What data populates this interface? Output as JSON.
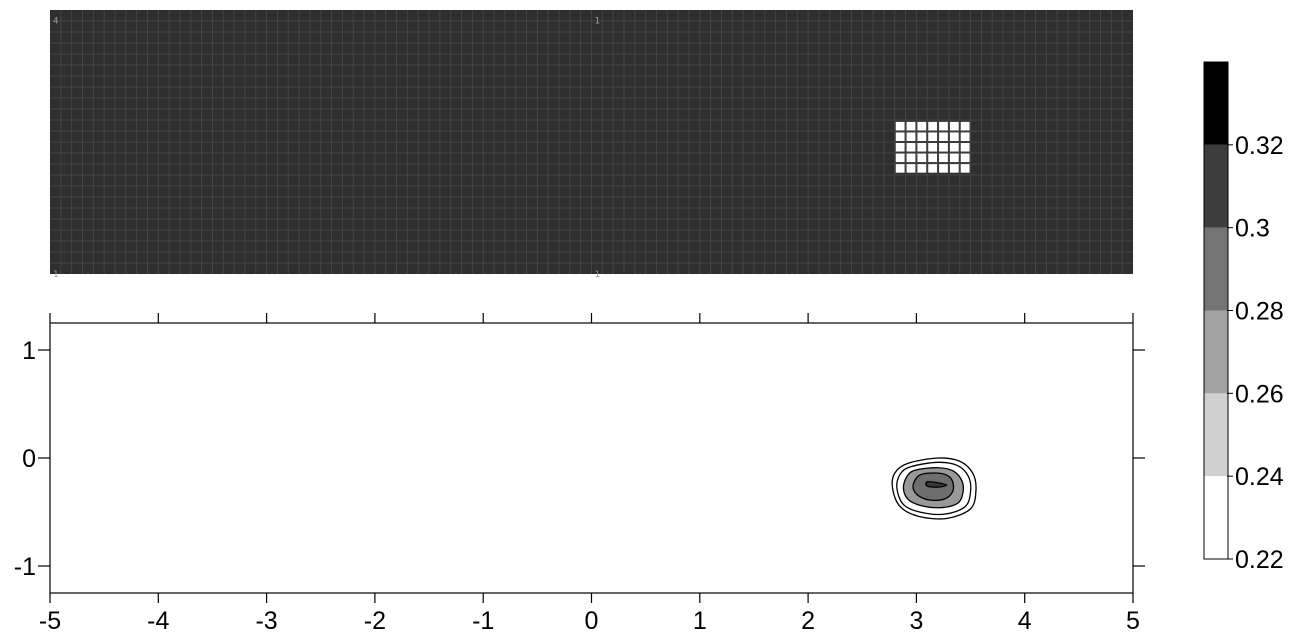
{
  "chart_data": [
    {
      "type": "heatmap",
      "panel": "mesh",
      "grid_cells": {
        "cols": 100,
        "rows": 24
      },
      "refined_block": {
        "x_range": [
          2.8,
          3.5
        ],
        "y_range": [
          -0.3,
          0.2
        ],
        "cols": 7,
        "rows": 5
      },
      "corner_labels": [
        {
          "text": "4",
          "x": -5,
          "y": 1.15
        },
        {
          "text": "1",
          "x": 0,
          "y": 1.15
        },
        {
          "text": "1",
          "x": -5,
          "y": -1.25
        },
        {
          "text": "1",
          "x": 0,
          "y": -1.25
        }
      ],
      "colors": {
        "background": "#2f2f2f",
        "grid_line": "#454545",
        "refined": "#ffffff"
      }
    },
    {
      "type": "contour",
      "panel": "field",
      "xlim": [
        -5,
        5
      ],
      "ylim": [
        -1.25,
        1.25
      ],
      "x_ticks": [
        -5,
        -4,
        -3,
        -2,
        -1,
        0,
        1,
        2,
        3,
        4,
        5
      ],
      "x_tick_labels": [
        "-5",
        "-4",
        "-3",
        "-2",
        "-1",
        "0",
        "1",
        "2",
        "3",
        "4",
        "5"
      ],
      "y_ticks": [
        -1,
        0,
        1
      ],
      "y_tick_labels": [
        "-1",
        "0",
        "1"
      ],
      "contour_levels": [
        0.22,
        0.24,
        0.26,
        0.28,
        0.3,
        0.32
      ],
      "peak": {
        "x": 3.18,
        "y": -0.25
      },
      "contours": [
        {
          "level": 0.24,
          "fill": "#ffffff",
          "points": [
            [
              2.92,
              -0.05
            ],
            [
              3.2,
              0.0
            ],
            [
              3.4,
              -0.03
            ],
            [
              3.52,
              -0.14
            ],
            [
              3.55,
              -0.3
            ],
            [
              3.5,
              -0.47
            ],
            [
              3.28,
              -0.56
            ],
            [
              3.02,
              -0.54
            ],
            [
              2.85,
              -0.45
            ],
            [
              2.78,
              -0.28
            ],
            [
              2.8,
              -0.14
            ]
          ]
        },
        {
          "level": 0.26,
          "fill": "#ffffff",
          "points": [
            [
              2.95,
              -0.08
            ],
            [
              3.2,
              -0.04
            ],
            [
              3.38,
              -0.07
            ],
            [
              3.48,
              -0.17
            ],
            [
              3.5,
              -0.31
            ],
            [
              3.45,
              -0.45
            ],
            [
              3.26,
              -0.52
            ],
            [
              3.03,
              -0.5
            ],
            [
              2.88,
              -0.43
            ],
            [
              2.82,
              -0.28
            ],
            [
              2.85,
              -0.15
            ]
          ]
        },
        {
          "level": 0.28,
          "fill": "#999999",
          "points": [
            [
              3.0,
              -0.11
            ],
            [
              3.2,
              -0.09
            ],
            [
              3.34,
              -0.12
            ],
            [
              3.42,
              -0.21
            ],
            [
              3.43,
              -0.32
            ],
            [
              3.38,
              -0.42
            ],
            [
              3.22,
              -0.46
            ],
            [
              3.04,
              -0.44
            ],
            [
              2.92,
              -0.38
            ],
            [
              2.88,
              -0.27
            ],
            [
              2.92,
              -0.16
            ]
          ]
        },
        {
          "level": 0.3,
          "fill": "#6e6e6e",
          "points": [
            [
              3.05,
              -0.15
            ],
            [
              3.2,
              -0.14
            ],
            [
              3.3,
              -0.17
            ],
            [
              3.34,
              -0.24
            ],
            [
              3.33,
              -0.32
            ],
            [
              3.26,
              -0.38
            ],
            [
              3.13,
              -0.39
            ],
            [
              3.02,
              -0.35
            ],
            [
              2.97,
              -0.28
            ],
            [
              2.99,
              -0.2
            ]
          ]
        },
        {
          "level": 0.32,
          "fill": "#383838",
          "points": [
            [
              3.1,
              -0.22
            ],
            [
              3.2,
              -0.23
            ],
            [
              3.28,
              -0.25
            ],
            [
              3.2,
              -0.27
            ],
            [
              3.1,
              -0.26
            ]
          ]
        }
      ]
    },
    {
      "type": "colorbar",
      "panel": "colorbar",
      "range": [
        0.22,
        0.34
      ],
      "boundaries": [
        0.22,
        0.24,
        0.26,
        0.28,
        0.3,
        0.32,
        0.34
      ],
      "colors": [
        "#ffffff",
        "#d0d0d0",
        "#a2a2a2",
        "#747474",
        "#3d3d3d",
        "#000000"
      ],
      "tick_values": [
        0.22,
        0.24,
        0.26,
        0.28,
        0.3,
        0.32
      ],
      "tick_labels": [
        "0.22",
        "0.24",
        "0.26",
        "0.28",
        "0.3",
        "0.32"
      ]
    }
  ]
}
